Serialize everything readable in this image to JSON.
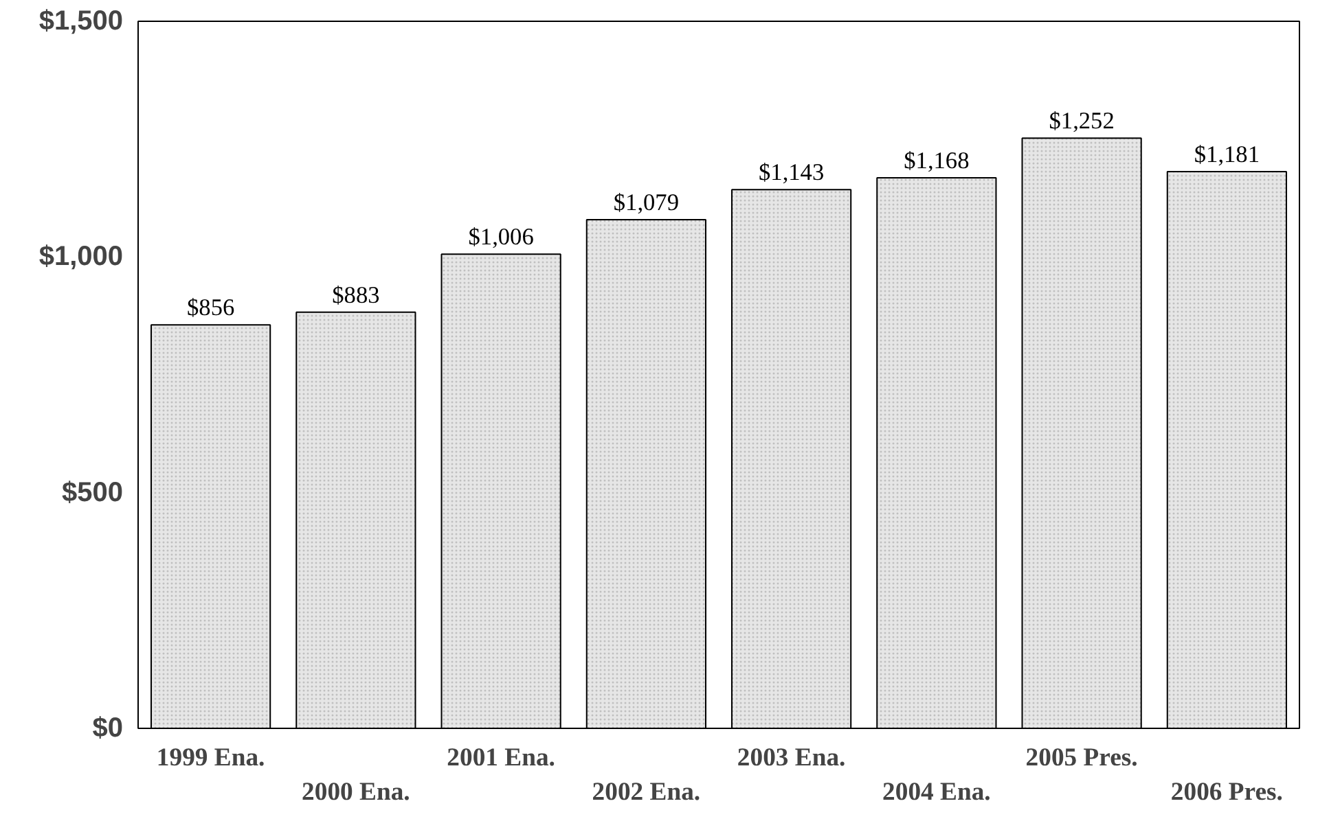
{
  "chart_data": {
    "type": "bar",
    "categories": [
      "1999 Ena.",
      "2000 Ena.",
      "2001 Ena.",
      "2002 Ena.",
      "2003 Ena.",
      "2004 Ena.",
      "2005 Pres.",
      "2006 Pres."
    ],
    "values": [
      856,
      883,
      1006,
      1079,
      1143,
      1168,
      1252,
      1181
    ],
    "value_labels": [
      "$856",
      "$883",
      "$1,006",
      "$1,079",
      "$1,143",
      "$1,168",
      "$1,252",
      "$1,181"
    ],
    "color": "#e6e6e6",
    "ylim": [
      0,
      1500
    ],
    "yticks": [
      {
        "value": 0,
        "label": "$0"
      },
      {
        "value": 500,
        "label": "$500"
      },
      {
        "value": 1000,
        "label": "$1,000"
      },
      {
        "value": 1500,
        "label": "$1,500"
      }
    ],
    "grid": false
  }
}
